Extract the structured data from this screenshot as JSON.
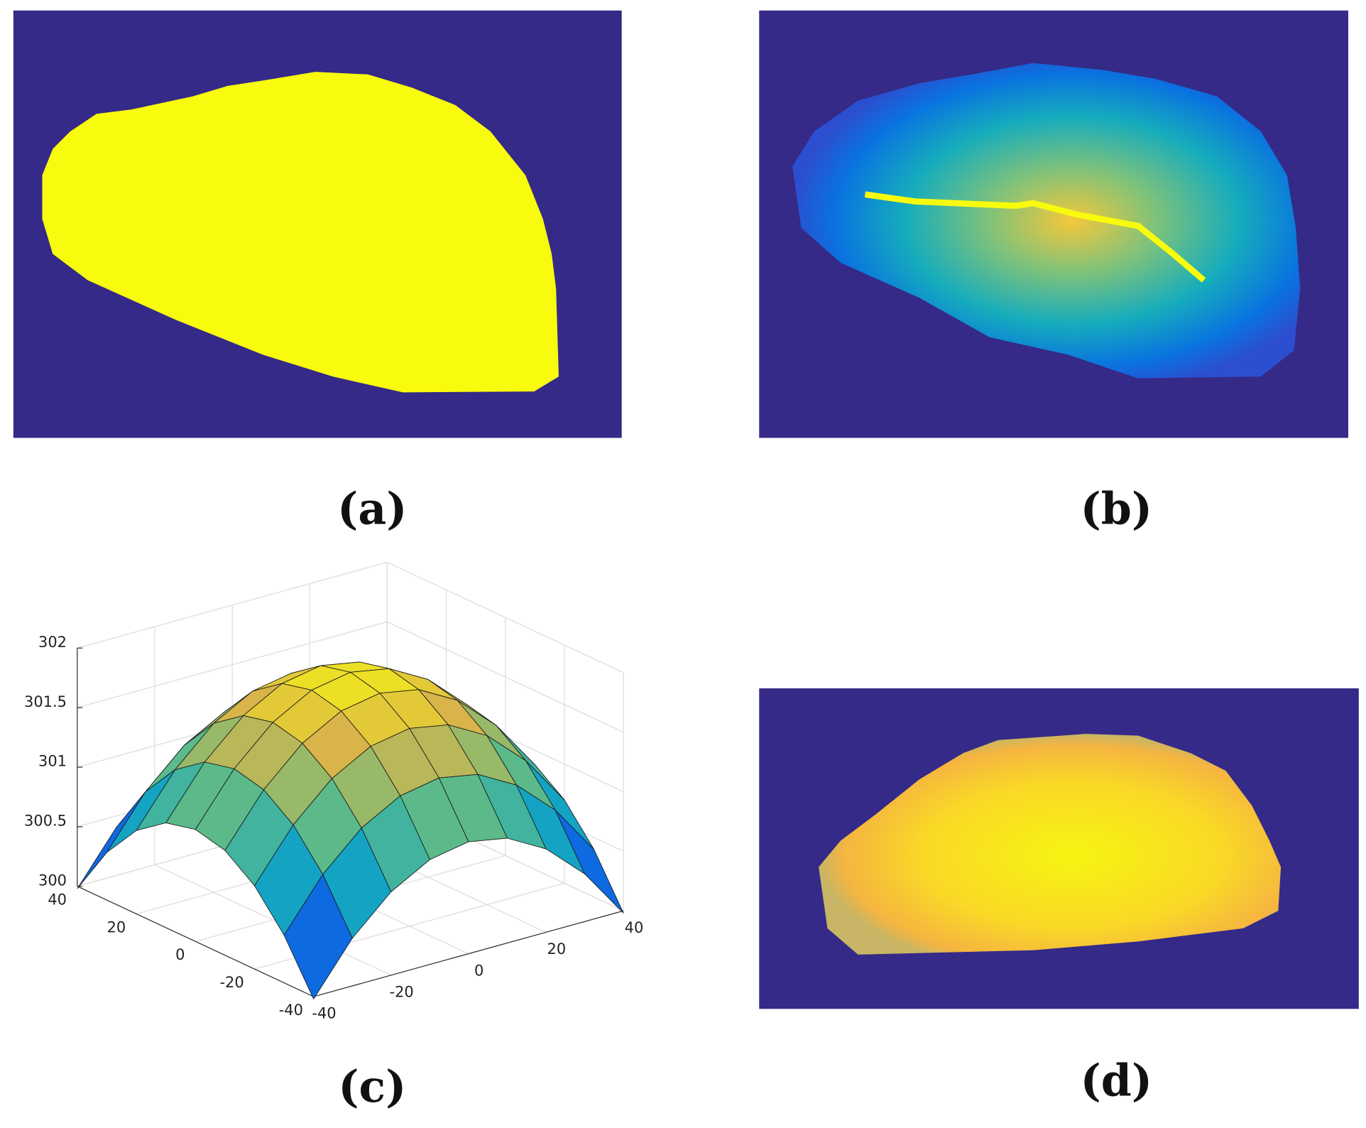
{
  "panel_labels": [
    "(a)",
    "(b)",
    "(c)",
    "(d)"
  ],
  "chart_data": {
    "type": "surface",
    "x": [
      -40,
      -30,
      -20,
      -10,
      0,
      10,
      20,
      30,
      40
    ],
    "y": [
      -40,
      -30,
      -20,
      -10,
      0,
      10,
      20,
      30,
      40
    ],
    "z": [
      [
        299.98,
        300.4,
        300.7,
        300.88,
        300.94,
        300.88,
        300.7,
        300.4,
        299.98
      ],
      [
        300.4,
        300.82,
        301.12,
        301.3,
        301.36,
        301.3,
        301.12,
        300.82,
        300.4
      ],
      [
        300.7,
        301.12,
        301.42,
        301.6,
        301.66,
        301.6,
        301.42,
        301.12,
        300.7
      ],
      [
        300.88,
        301.3,
        301.6,
        301.78,
        301.84,
        301.78,
        301.6,
        301.3,
        300.88
      ],
      [
        300.94,
        301.36,
        301.66,
        301.84,
        301.9,
        301.84,
        301.66,
        301.36,
        300.94
      ],
      [
        300.88,
        301.3,
        301.6,
        301.78,
        301.84,
        301.78,
        301.6,
        301.3,
        300.88
      ],
      [
        300.7,
        301.12,
        301.42,
        301.6,
        301.66,
        301.6,
        301.42,
        301.12,
        300.7
      ],
      [
        300.4,
        300.82,
        301.12,
        301.3,
        301.36,
        301.3,
        301.12,
        300.82,
        300.4
      ],
      [
        299.98,
        300.4,
        300.7,
        300.88,
        300.94,
        300.88,
        300.7,
        300.4,
        299.98
      ]
    ],
    "xlim": [
      -40,
      40
    ],
    "ylim": [
      -40,
      40
    ],
    "zlim": [
      300,
      302
    ],
    "xticks": [
      -40,
      -20,
      0,
      20,
      40
    ],
    "yticks": [
      -40,
      -20,
      0,
      20,
      40
    ],
    "zticks": [
      300,
      300.5,
      301,
      301.5,
      302
    ],
    "grid": true,
    "colormap": [
      "#352a87",
      "#0d6ae0",
      "#15a9c0",
      "#6cbd7c",
      "#d9b44a",
      "#f9fb0e"
    ]
  }
}
